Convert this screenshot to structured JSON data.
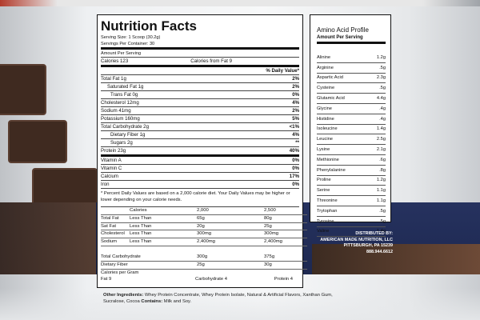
{
  "nutrition": {
    "title": "Nutrition Facts",
    "serving_size": "Serving Size: 1 Scoop (30.2g)",
    "servings_per_container": "Servings Per Container: 30",
    "amount_per_serving": "Amount Per Serving",
    "calories": "Calories 123",
    "calories_from_fat": "Calories from Fat 9",
    "dv_header": "% Daily Value*",
    "rows": [
      {
        "label": "Total Fat 1g",
        "value": "2%",
        "style": "normal"
      },
      {
        "label": "Saturated Fat 1g",
        "value": "2%",
        "style": "indent"
      },
      {
        "label": "Trans Fat 0g",
        "value": "0%",
        "style": "indent2"
      },
      {
        "label": "Cholesterol 12mg",
        "value": "4%",
        "style": "normal"
      },
      {
        "label": "Sodium 41mg",
        "value": "2%",
        "style": "normal"
      },
      {
        "label": "Potassium 160mg",
        "value": "5%",
        "style": "normal"
      },
      {
        "label": "Total Carbohydrate 2g",
        "value": "<1%",
        "style": "normal"
      },
      {
        "label": "Dietary Fiber 1g",
        "value": "4%",
        "style": "indent2"
      },
      {
        "label": "Sugars 2g",
        "value": "**",
        "style": "indent2"
      },
      {
        "label": "Protein 23g",
        "value": "40%",
        "style": "thick"
      },
      {
        "label": "Vitamin A",
        "value": "0%",
        "style": "normal"
      },
      {
        "label": "Vitamin C",
        "value": "0%",
        "style": "normal"
      },
      {
        "label": "Calcium",
        "value": "17%",
        "style": "normal"
      },
      {
        "label": "Iron",
        "value": "0%",
        "style": "normal"
      }
    ],
    "footnote": "* Percent Daily Values are based on a 2,000 calorie diet. Your Daily Values may be higher or lower depending on your calorie needs.",
    "guide": {
      "header": [
        "",
        "Calories",
        "2,000",
        "2,500"
      ],
      "rows": [
        [
          "Total Fat",
          "Less Than",
          "65g",
          "80g"
        ],
        [
          "Sat Fat",
          "Less Than",
          "20g",
          "25g"
        ],
        [
          "Cholesterol",
          "Less Than",
          "300mg",
          "300mg"
        ],
        [
          "Sodium",
          "Less Than",
          "2,400mg",
          "2,400mg"
        ],
        [
          "Total Carbohydrate",
          "",
          "300g",
          "375g"
        ],
        [
          "Dietary Fiber",
          "",
          "25g",
          "30g"
        ]
      ],
      "cal_per_gram": "Calories per Gram",
      "fat": "Fat 9",
      "carb": "Carbohydrate 4",
      "protein": "Protein 4"
    }
  },
  "amino": {
    "title": "Amino Acid Profile",
    "subtitle": "Amount Per Serving",
    "rows": [
      {
        "name": "Alinine",
        "value": "1.2g"
      },
      {
        "name": "Arginine",
        "value": ".5g"
      },
      {
        "name": "Aspartic Acid",
        "value": "2.3g"
      },
      {
        "name": "Cysteine",
        "value": ".5g"
      },
      {
        "name": "Glutamic Acid",
        "value": "4.4g"
      },
      {
        "name": "Glycine",
        "value": ".4g"
      },
      {
        "name": "Histidine",
        "value": ".4g"
      },
      {
        "name": "Isoleucine",
        "value": "1.4g"
      },
      {
        "name": "Leucine",
        "value": "2.5g"
      },
      {
        "name": "Lysine",
        "value": "2.1g"
      },
      {
        "name": "Methionine",
        "value": ".6g"
      },
      {
        "name": "Phenylalanine",
        "value": ".8g"
      },
      {
        "name": "Proline",
        "value": "1.2g"
      },
      {
        "name": "Serine",
        "value": "1.1g"
      },
      {
        "name": "Threonine",
        "value": "1.1g"
      },
      {
        "name": "Trytophan",
        "value": ".5g"
      },
      {
        "name": "Tyrosine",
        "value": ".5g"
      },
      {
        "name": "Valine",
        "value": "1.4g"
      }
    ]
  },
  "distributor": {
    "label": "DISTRIBUTED BY:",
    "company": "AMERICAN MADE NUTRITION, LLC",
    "city": "PITTSBURGH, PA 15239",
    "phone": "888.944.6612"
  },
  "ingredients": {
    "label": "Other Ingredients:",
    "text": "Whey Protein Concentrate, Whey Protein Isolate, Natural & Artificial Flavors, Xanthan Gum, Sucralose, Cocoa",
    "contains_label": "Contains:",
    "contains": "Milk and Soy."
  }
}
